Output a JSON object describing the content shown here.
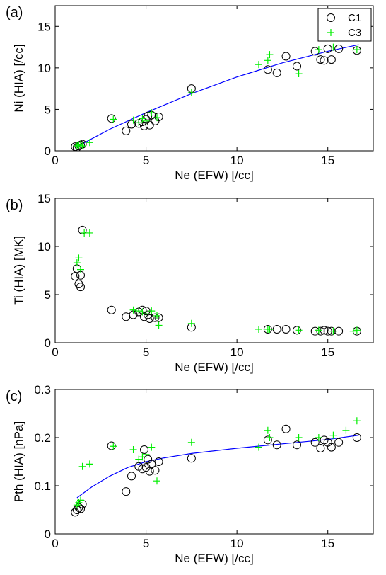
{
  "chart_data": [
    {
      "type": "scatter",
      "panel_label": "(a)",
      "xlabel": "Ne (EFW) [/cc]",
      "ylabel": "Ni (HIA) [/cc]",
      "xlim": [
        0,
        17.5
      ],
      "ylim": [
        0,
        17.5
      ],
      "xticks": [
        0,
        5,
        10,
        15
      ],
      "yticks": [
        0,
        5,
        10,
        15
      ],
      "grid": false,
      "legend": {
        "placement": "top-right",
        "entries": [
          "C1",
          "C3"
        ]
      },
      "series": [
        {
          "name": "C1",
          "marker": "circle",
          "color": "#000000",
          "points": [
            [
              1.1,
              0.5
            ],
            [
              1.2,
              0.4
            ],
            [
              1.3,
              0.6
            ],
            [
              1.4,
              0.7
            ],
            [
              1.5,
              0.8
            ],
            [
              3.1,
              3.9
            ],
            [
              3.9,
              2.4
            ],
            [
              4.2,
              3.2
            ],
            [
              4.6,
              3.3
            ],
            [
              4.8,
              3.5
            ],
            [
              4.9,
              3.0
            ],
            [
              5.0,
              3.8
            ],
            [
              5.1,
              4.2
            ],
            [
              5.2,
              3.1
            ],
            [
              5.3,
              4.3
            ],
            [
              5.5,
              3.6
            ],
            [
              5.7,
              4.1
            ],
            [
              7.5,
              7.5
            ],
            [
              11.7,
              9.8
            ],
            [
              12.2,
              9.4
            ],
            [
              12.7,
              11.4
            ],
            [
              13.3,
              10.2
            ],
            [
              14.3,
              12.0
            ],
            [
              14.6,
              11.0
            ],
            [
              14.8,
              10.9
            ],
            [
              15.0,
              12.3
            ],
            [
              15.2,
              11.0
            ],
            [
              15.6,
              12.3
            ],
            [
              16.6,
              12.1
            ]
          ]
        },
        {
          "name": "C3",
          "marker": "plus",
          "color": "#00ee00",
          "points": [
            [
              1.2,
              0.6
            ],
            [
              1.3,
              0.7
            ],
            [
              1.4,
              0.8
            ],
            [
              1.5,
              0.6
            ],
            [
              1.9,
              1.0
            ],
            [
              3.2,
              3.8
            ],
            [
              4.3,
              3.7
            ],
            [
              4.6,
              3.4
            ],
            [
              4.8,
              3.9
            ],
            [
              5.0,
              3.6
            ],
            [
              5.3,
              4.6
            ],
            [
              5.6,
              4.0
            ],
            [
              7.5,
              7.0
            ],
            [
              11.2,
              10.4
            ],
            [
              11.7,
              10.9
            ],
            [
              11.8,
              11.6
            ],
            [
              13.4,
              9.3
            ],
            [
              14.5,
              12.2
            ],
            [
              15.3,
              12.5
            ],
            [
              16.6,
              12.2
            ]
          ]
        }
      ],
      "fit": {
        "color": "#0000ff",
        "points": [
          [
            1.2,
            0.5
          ],
          [
            3,
            2.6
          ],
          [
            5,
            4.6
          ],
          [
            7.5,
            6.9
          ],
          [
            10,
            8.9
          ],
          [
            12.5,
            10.6
          ],
          [
            15,
            12.0
          ],
          [
            16.7,
            12.8
          ]
        ]
      }
    },
    {
      "type": "scatter",
      "panel_label": "(b)",
      "xlabel": "Ne (EFW) [/cc]",
      "ylabel": "Ti (HIA) [MK]",
      "xlim": [
        0,
        17.5
      ],
      "ylim": [
        0,
        15
      ],
      "xticks": [
        0,
        5,
        10,
        15
      ],
      "yticks": [
        0,
        5,
        10,
        15
      ],
      "grid": false,
      "series": [
        {
          "name": "C1",
          "marker": "circle",
          "color": "#000000",
          "points": [
            [
              1.1,
              6.9
            ],
            [
              1.2,
              7.7
            ],
            [
              1.3,
              6.1
            ],
            [
              1.4,
              7.0
            ],
            [
              1.4,
              5.8
            ],
            [
              1.5,
              11.7
            ],
            [
              3.1,
              3.4
            ],
            [
              3.9,
              2.7
            ],
            [
              4.3,
              2.9
            ],
            [
              4.6,
              3.2
            ],
            [
              4.8,
              3.4
            ],
            [
              4.9,
              2.7
            ],
            [
              5.0,
              3.3
            ],
            [
              5.1,
              2.9
            ],
            [
              5.2,
              2.5
            ],
            [
              5.5,
              2.6
            ],
            [
              5.7,
              2.6
            ],
            [
              7.5,
              1.6
            ],
            [
              11.7,
              1.4
            ],
            [
              12.2,
              1.4
            ],
            [
              12.7,
              1.4
            ],
            [
              13.3,
              1.3
            ],
            [
              14.3,
              1.2
            ],
            [
              14.6,
              1.2
            ],
            [
              14.8,
              1.3
            ],
            [
              15.0,
              1.2
            ],
            [
              15.2,
              1.2
            ],
            [
              15.6,
              1.2
            ],
            [
              16.6,
              1.2
            ]
          ]
        },
        {
          "name": "C3",
          "marker": "plus",
          "color": "#00ee00",
          "points": [
            [
              1.2,
              8.3
            ],
            [
              1.3,
              8.8
            ],
            [
              1.4,
              7.6
            ],
            [
              1.6,
              11.4
            ],
            [
              1.9,
              11.4
            ],
            [
              4.3,
              3.4
            ],
            [
              4.6,
              3.3
            ],
            [
              4.8,
              3.2
            ],
            [
              5.0,
              3.0
            ],
            [
              5.3,
              3.3
            ],
            [
              5.6,
              2.8
            ],
            [
              5.7,
              1.8
            ],
            [
              7.5,
              2.0
            ],
            [
              11.2,
              1.4
            ],
            [
              11.7,
              1.4
            ],
            [
              11.8,
              1.4
            ],
            [
              13.4,
              1.3
            ],
            [
              14.5,
              1.3
            ],
            [
              15.3,
              1.2
            ],
            [
              16.4,
              1.2
            ],
            [
              16.6,
              1.3
            ]
          ]
        }
      ]
    },
    {
      "type": "scatter",
      "panel_label": "(c)",
      "xlabel": "Ne (EFW) [/cc]",
      "ylabel": "Pth (HIA) [nPa]",
      "xlim": [
        0,
        17.5
      ],
      "ylim": [
        0,
        0.3
      ],
      "xticks": [
        0,
        5,
        10,
        15
      ],
      "yticks": [
        0,
        0.1,
        0.2,
        0.3
      ],
      "grid": false,
      "series": [
        {
          "name": "C1",
          "marker": "circle",
          "color": "#000000",
          "points": [
            [
              1.1,
              0.045
            ],
            [
              1.2,
              0.05
            ],
            [
              1.3,
              0.055
            ],
            [
              1.4,
              0.052
            ],
            [
              1.5,
              0.062
            ],
            [
              3.1,
              0.183
            ],
            [
              3.9,
              0.088
            ],
            [
              4.2,
              0.12
            ],
            [
              4.6,
              0.14
            ],
            [
              4.8,
              0.135
            ],
            [
              4.9,
              0.175
            ],
            [
              5.0,
              0.138
            ],
            [
              5.1,
              0.155
            ],
            [
              5.2,
              0.13
            ],
            [
              5.3,
              0.145
            ],
            [
              5.5,
              0.132
            ],
            [
              5.7,
              0.15
            ],
            [
              7.5,
              0.157
            ],
            [
              11.7,
              0.195
            ],
            [
              12.2,
              0.185
            ],
            [
              12.7,
              0.218
            ],
            [
              13.3,
              0.185
            ],
            [
              14.3,
              0.19
            ],
            [
              14.6,
              0.178
            ],
            [
              14.8,
              0.195
            ],
            [
              15.0,
              0.19
            ],
            [
              15.2,
              0.18
            ],
            [
              15.6,
              0.19
            ],
            [
              16.6,
              0.2
            ]
          ]
        },
        {
          "name": "C3",
          "marker": "plus",
          "color": "#00ee00",
          "points": [
            [
              1.2,
              0.06
            ],
            [
              1.3,
              0.065
            ],
            [
              1.4,
              0.07
            ],
            [
              1.5,
              0.14
            ],
            [
              1.9,
              0.145
            ],
            [
              3.2,
              0.182
            ],
            [
              4.3,
              0.175
            ],
            [
              4.6,
              0.155
            ],
            [
              4.8,
              0.16
            ],
            [
              5.0,
              0.165
            ],
            [
              5.3,
              0.18
            ],
            [
              5.6,
              0.11
            ],
            [
              7.5,
              0.19
            ],
            [
              11.2,
              0.18
            ],
            [
              11.7,
              0.215
            ],
            [
              11.8,
              0.2
            ],
            [
              13.4,
              0.2
            ],
            [
              14.5,
              0.2
            ],
            [
              15.3,
              0.205
            ],
            [
              16.0,
              0.215
            ],
            [
              16.6,
              0.235
            ]
          ]
        }
      ],
      "fit": {
        "color": "#0000ff",
        "points": [
          [
            1.2,
            0.075
          ],
          [
            2,
            0.097
          ],
          [
            3,
            0.12
          ],
          [
            4,
            0.138
          ],
          [
            5,
            0.15
          ],
          [
            6,
            0.158
          ],
          [
            7.5,
            0.167
          ],
          [
            10,
            0.178
          ],
          [
            12.5,
            0.187
          ],
          [
            15,
            0.196
          ],
          [
            16.7,
            0.205
          ]
        ]
      }
    }
  ]
}
